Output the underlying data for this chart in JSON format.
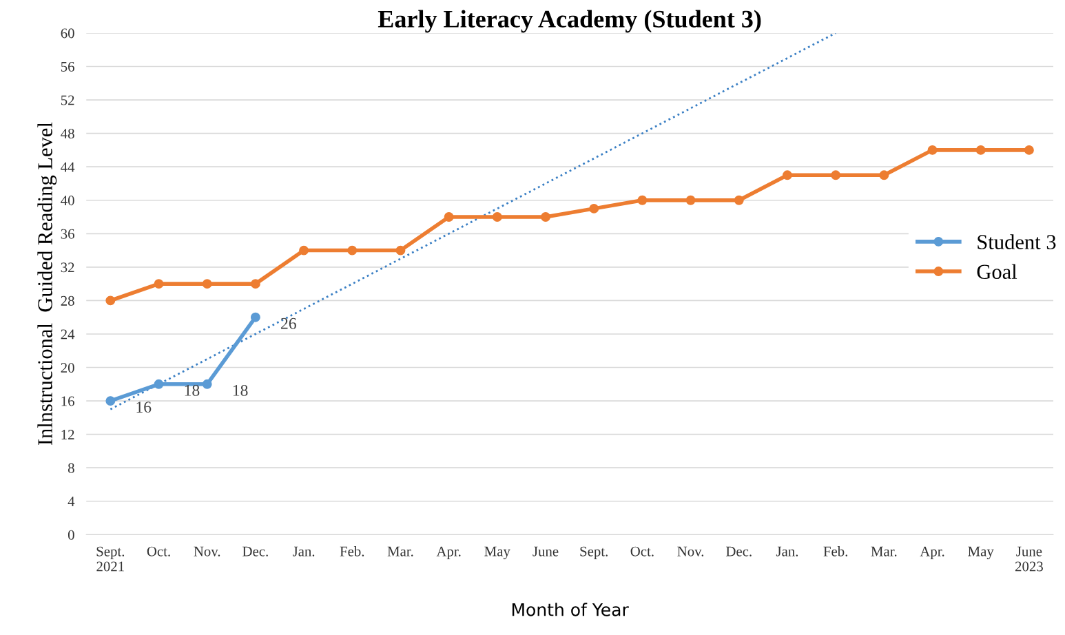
{
  "chart_data": {
    "type": "line",
    "title": "Early Literacy Academy (Student 3)",
    "xlabel": "Month of Year",
    "ylabel": "Inlnstructional  Guided Reading Level",
    "categories": [
      "Sept.\n2021",
      "Oct.",
      "Nov.",
      "Dec.",
      "Jan.",
      "Feb.",
      "Mar.",
      "Apr.",
      "May",
      "June",
      "Sept.",
      "Oct.",
      "Nov.",
      "Dec.",
      "Jan.",
      "Feb.",
      "Mar.",
      "Apr.",
      "May",
      "June\n2023"
    ],
    "series": [
      {
        "name": "Student 3",
        "color": "#5b9bd5",
        "values": [
          16,
          18,
          18,
          26,
          null,
          null,
          null,
          null,
          null,
          null,
          null,
          null,
          null,
          null,
          null,
          null,
          null,
          null,
          null,
          null
        ],
        "value_labels": [
          "16",
          "18",
          "18",
          "26",
          null,
          null,
          null,
          null,
          null,
          null,
          null,
          null,
          null,
          null,
          null,
          null,
          null,
          null,
          null,
          null
        ]
      },
      {
        "name": "Goal",
        "color": "#ed7d31",
        "values": [
          28,
          30,
          30,
          30,
          34,
          34,
          34,
          38,
          38,
          38,
          39,
          40,
          40,
          40,
          43,
          43,
          43,
          46,
          46,
          46
        ]
      },
      {
        "type": "line",
        "color": "#3a7fc4",
        "values": [
          15,
          18,
          21,
          24,
          27,
          30,
          33,
          36,
          39,
          42,
          45,
          48,
          51,
          54,
          57,
          60,
          null,
          null,
          null,
          null
        ],
        "line_style": "dotted",
        "marker": "none"
      }
    ],
    "ylim": [
      0,
      60
    ],
    "yticks": [
      0,
      4,
      8,
      12,
      16,
      20,
      24,
      28,
      32,
      36,
      40,
      44,
      48,
      52,
      56,
      60
    ],
    "grid": "y",
    "legend": "right",
    "marker": "circle",
    "line_style": "solid"
  }
}
